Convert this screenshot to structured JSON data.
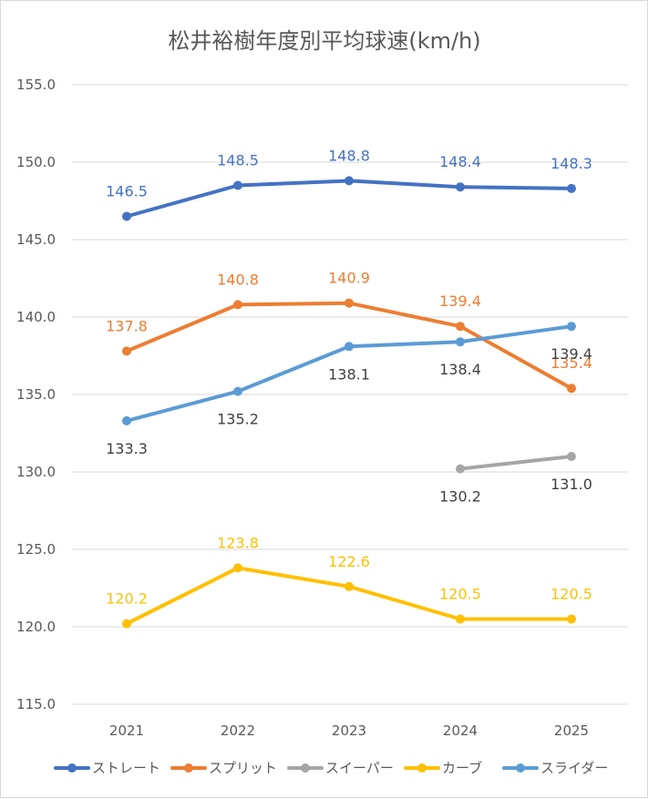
{
  "chart_data": {
    "type": "line",
    "title": "松井裕樹年度別平均球速(km/h)",
    "xlabel": "",
    "ylabel": "",
    "categories": [
      "2021",
      "2022",
      "2023",
      "2024",
      "2025"
    ],
    "ylim": [
      115,
      155
    ],
    "yticks": [
      "115.0",
      "120.0",
      "125.0",
      "130.0",
      "135.0",
      "140.0",
      "145.0",
      "150.0",
      "155.0"
    ],
    "grid": "horizontal",
    "legend_position": "bottom",
    "series": [
      {
        "name": "ストレート",
        "color": "#4472C4",
        "label_color": "#4472C4",
        "label_position": "above",
        "values": [
          146.5,
          148.5,
          148.8,
          148.4,
          148.3
        ],
        "labels": [
          "146.5",
          "148.5",
          "148.8",
          "148.4",
          "148.3"
        ]
      },
      {
        "name": "スプリット",
        "color": "#ED7D31",
        "label_color": "#ED7D31",
        "label_position": "above",
        "values": [
          137.8,
          140.8,
          140.9,
          139.4,
          135.4
        ],
        "labels": [
          "137.8",
          "140.8",
          "140.9",
          "139.4",
          "135.4"
        ]
      },
      {
        "name": "スイーパー",
        "color": "#A5A5A5",
        "label_color": "#404040",
        "label_position": "below",
        "values": [
          null,
          null,
          null,
          130.2,
          131.0
        ],
        "labels": [
          "",
          "",
          "",
          "130.2",
          "131.0"
        ]
      },
      {
        "name": "カーブ",
        "color": "#FFC000",
        "label_color": "#FFC000",
        "label_position": "above",
        "values": [
          120.2,
          123.8,
          122.6,
          120.5,
          120.5
        ],
        "labels": [
          "120.2",
          "123.8",
          "122.6",
          "120.5",
          "120.5"
        ]
      },
      {
        "name": "スライダー",
        "color": "#5B9BD5",
        "label_color": "#404040",
        "label_position": "below",
        "values": [
          133.3,
          135.2,
          138.1,
          138.4,
          139.4
        ],
        "labels": [
          "133.3",
          "135.2",
          "138.1",
          "138.4",
          "139.4"
        ]
      }
    ]
  }
}
